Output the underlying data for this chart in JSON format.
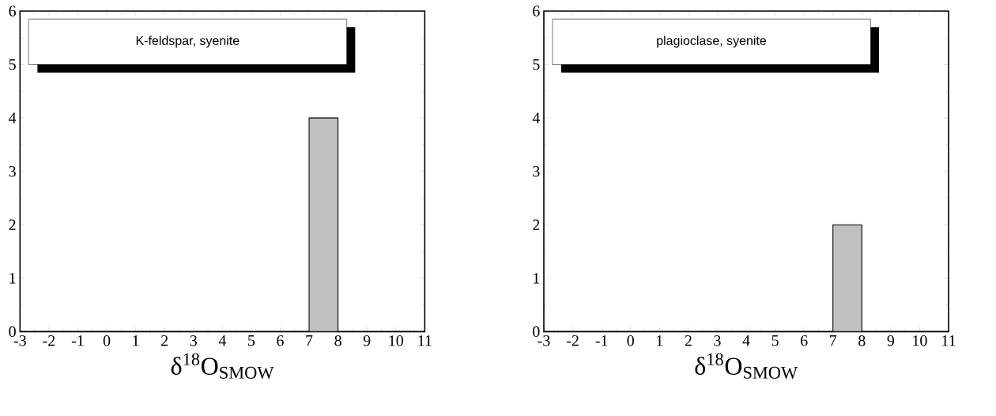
{
  "chart_data": [
    {
      "type": "histogram",
      "title": "K-feldspar, syenite",
      "xlabel": "δ$^{18}$O$_{SMOW}$",
      "bins": [
        -3,
        -2,
        -1,
        0,
        1,
        2,
        3,
        4,
        5,
        6,
        7,
        8,
        9,
        10,
        11
      ],
      "values": [
        0,
        0,
        0,
        0,
        0,
        0,
        0,
        0,
        0,
        0,
        4,
        0,
        0,
        0
      ],
      "color": "#c0c0c0",
      "xlim": [
        -3,
        11
      ],
      "ylim": [
        0,
        6
      ],
      "xticks": [
        -3,
        -2,
        -1,
        0,
        1,
        2,
        3,
        4,
        5,
        6,
        7,
        8,
        9,
        10,
        11
      ],
      "yticks": [
        0,
        1,
        2,
        3,
        4,
        5,
        6
      ]
    },
    {
      "type": "histogram",
      "title": "plagioclase, syenite",
      "xlabel": "δ$^{18}$O$_{SMOW}$",
      "bins": [
        -3,
        -2,
        -1,
        0,
        1,
        2,
        3,
        4,
        5,
        6,
        7,
        8,
        9,
        10,
        11
      ],
      "values": [
        0,
        0,
        0,
        0,
        0,
        0,
        0,
        0,
        0,
        0,
        2,
        0,
        0,
        0
      ],
      "color": "#c0c0c0",
      "xlim": [
        -3,
        11
      ],
      "ylim": [
        0,
        6
      ],
      "xticks": [
        -3,
        -2,
        -1,
        0,
        1,
        2,
        3,
        4,
        5,
        6,
        7,
        8,
        9,
        10,
        11
      ],
      "yticks": [
        0,
        1,
        2,
        3,
        4,
        5,
        6
      ]
    }
  ]
}
